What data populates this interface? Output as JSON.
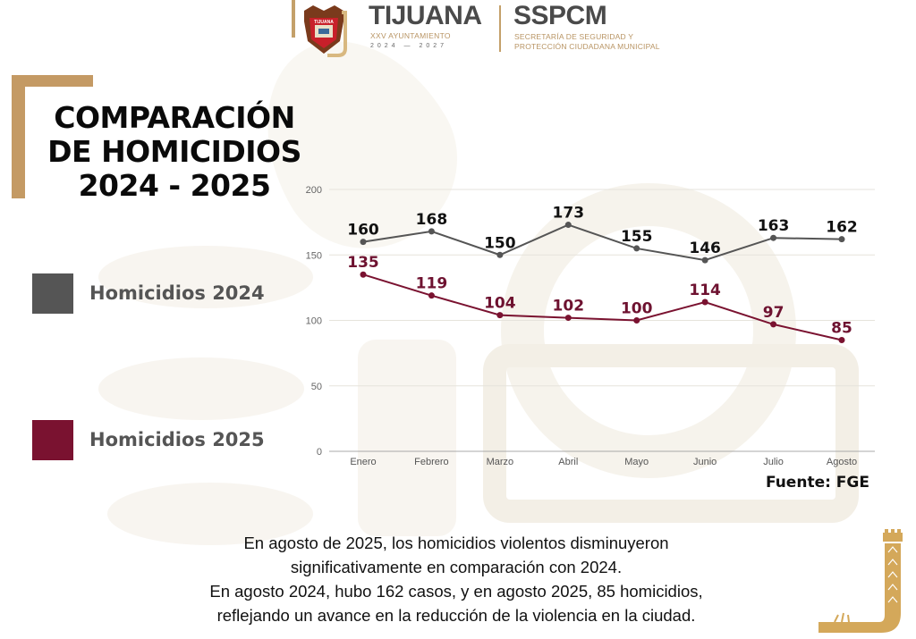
{
  "header": {
    "brand_title": "TIJUANA",
    "brand_subtitle": "XXV AYUNTAMIENTO",
    "brand_years": "2024 — 2027",
    "agency_title": "SSPCM",
    "agency_subtitle_line1": "SECRETARÍA DE SEGURIDAD Y",
    "agency_subtitle_line2": "PROTECCIÓN CIUDADANA MUNICIPAL",
    "crest_label": "TIJUANA"
  },
  "title": {
    "line1": "COMPARACIÓN",
    "line2": "DE HOMICIDIOS",
    "line3": "2024 - 2025"
  },
  "legend": [
    {
      "label": "Homicidios 2024",
      "color": "#555555"
    },
    {
      "label": "Homicidios 2025",
      "color": "#7a1230"
    }
  ],
  "source": "Fuente: FGE",
  "summary": {
    "line1": "En agosto de 2025, los homicidios violentos disminuyeron",
    "line2": "significativamente en comparación con 2024.",
    "line3": "En agosto 2024, hubo 162 casos, y en agosto 2025, 85 homicidios,",
    "line4": "reflejando un avance en la reducción de la violencia en la ciudad."
  },
  "colors": {
    "gold": "#c49a64",
    "series_2024": "#555555",
    "series_2025": "#7a1230",
    "label_2024": "#111111",
    "label_2025": "#6e1230"
  },
  "chart_data": {
    "type": "line",
    "title": "COMPARACIÓN DE HOMICIDIOS 2024 - 2025",
    "xlabel": "",
    "ylabel": "",
    "categories": [
      "Enero",
      "Febrero",
      "Marzo",
      "Abril",
      "Mayo",
      "Junio",
      "Julio",
      "Agosto"
    ],
    "series": [
      {
        "name": "Homicidios 2024",
        "values": [
          160,
          168,
          150,
          173,
          155,
          146,
          163,
          162
        ]
      },
      {
        "name": "Homicidios 2025",
        "values": [
          135,
          119,
          104,
          102,
          100,
          114,
          97,
          85
        ]
      }
    ],
    "ylim": [
      0,
      200
    ],
    "yticks": [
      0,
      50,
      100,
      150,
      200
    ],
    "grid": true,
    "legend_position": "left",
    "data_labels": true
  }
}
